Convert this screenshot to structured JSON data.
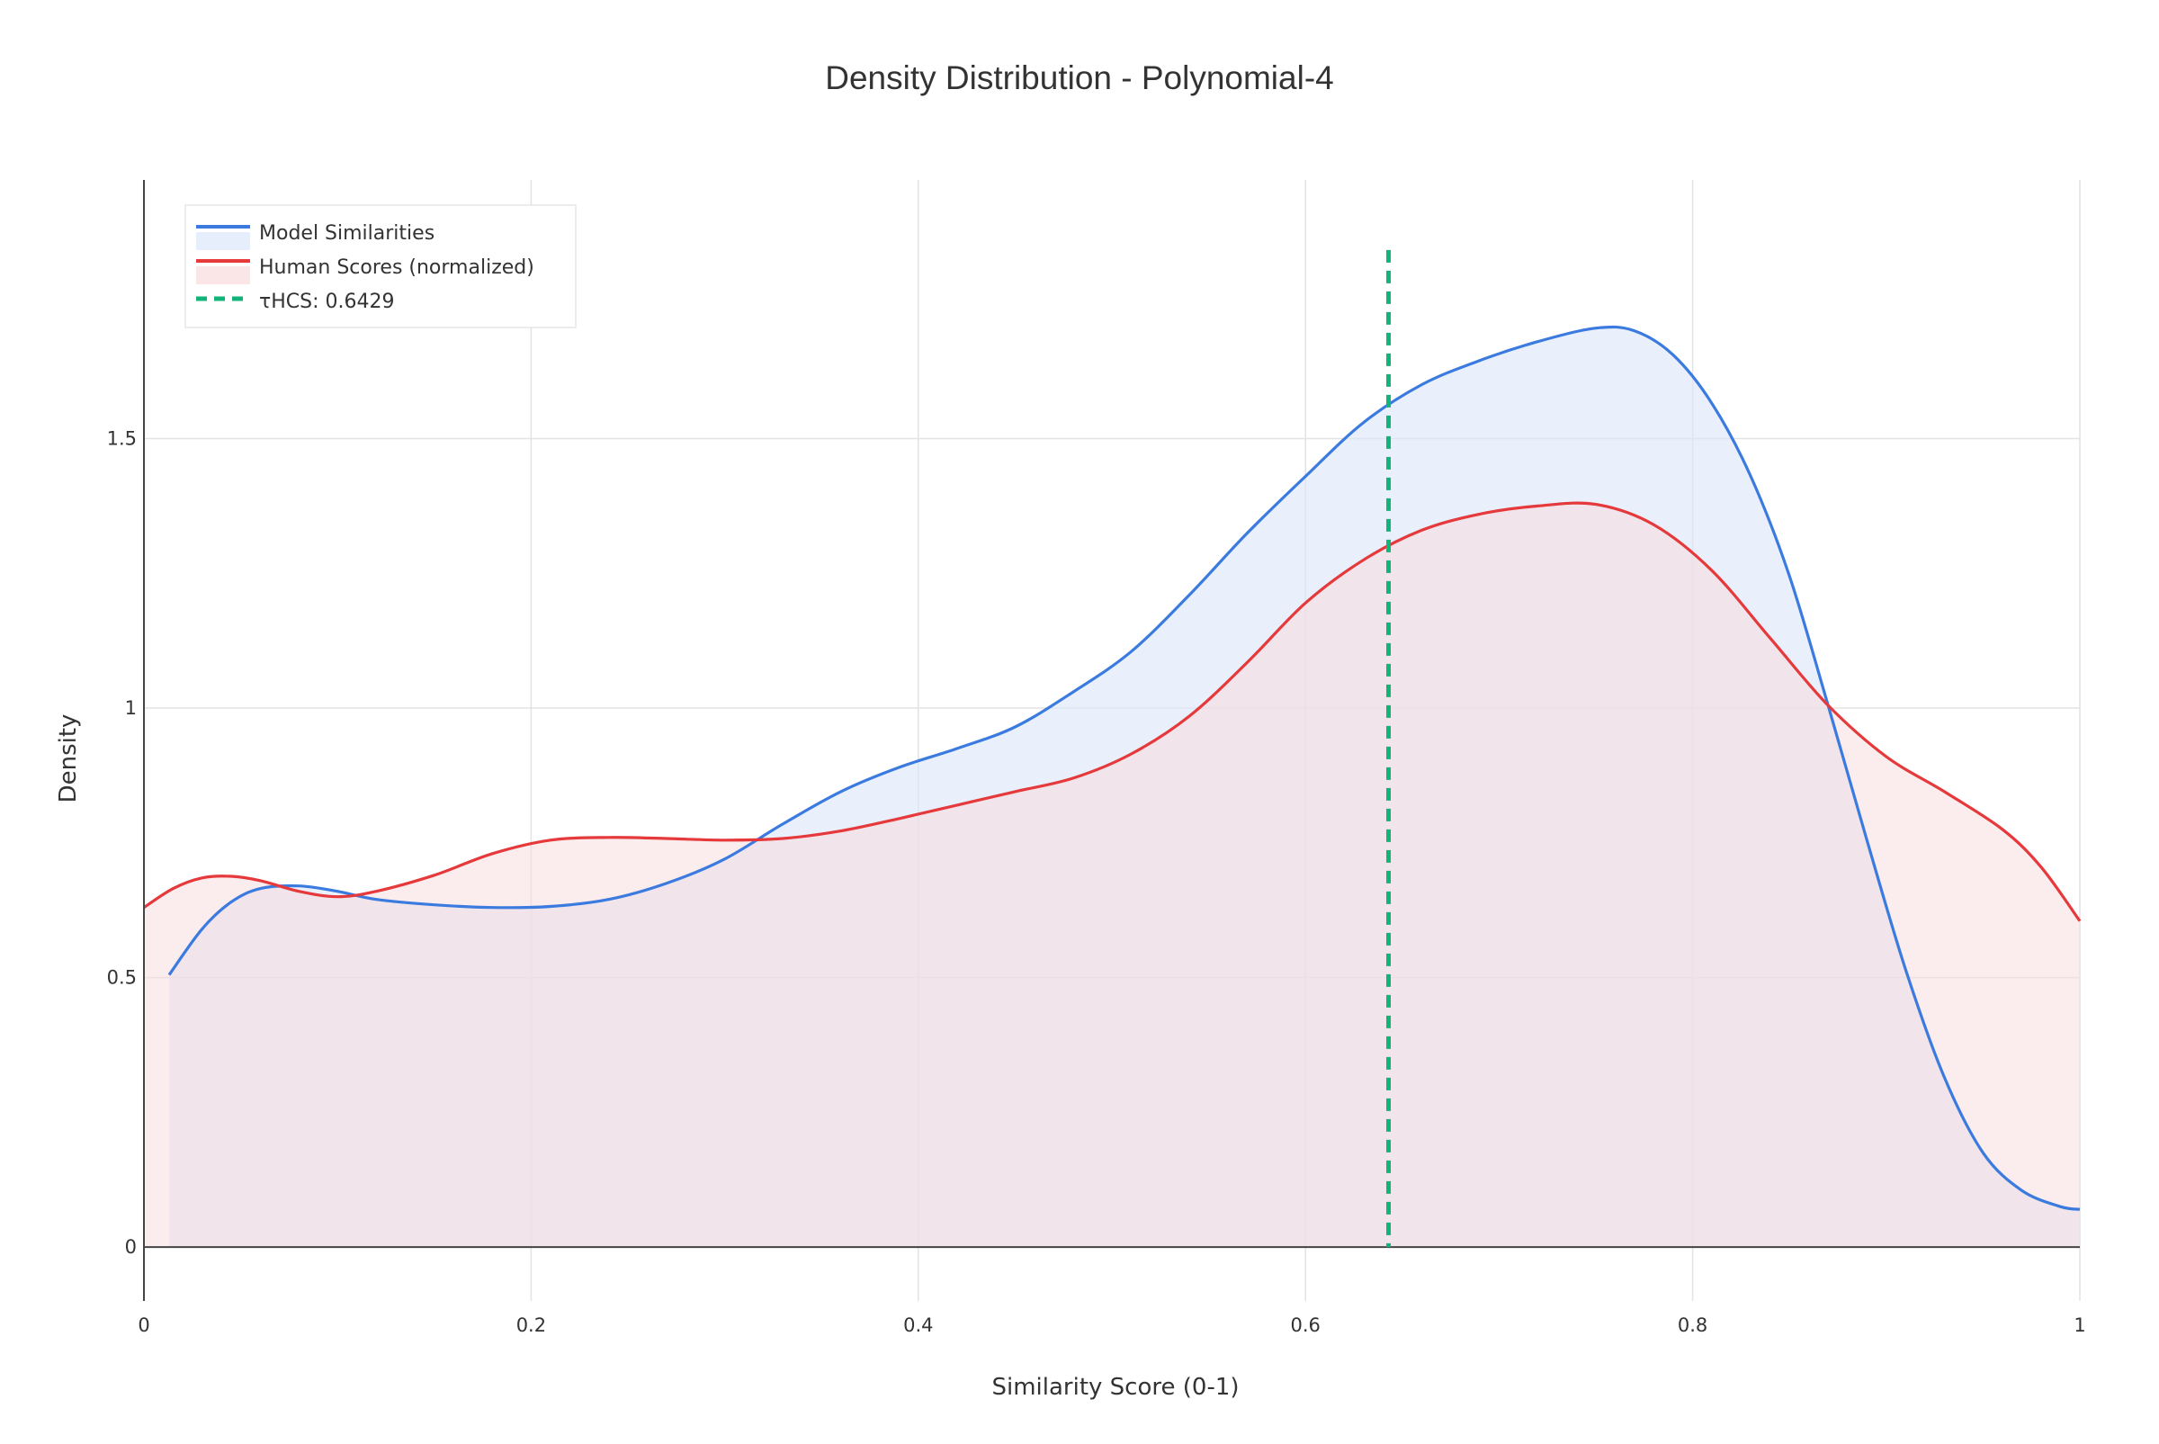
{
  "chart_data": {
    "type": "area",
    "title": "Density Distribution - Polynomial-4",
    "xlabel": "Similarity Score (0-1)",
    "ylabel": "Density",
    "xlim": [
      0,
      1
    ],
    "ylim": [
      -0.1,
      1.98
    ],
    "x_ticks": [
      0,
      0.2,
      0.4,
      0.6,
      0.8,
      1
    ],
    "x_tick_labels": [
      "0",
      "0.2",
      "0.4",
      "0.6",
      "0.8",
      "1"
    ],
    "y_ticks": [
      0,
      0.5,
      1,
      1.5
    ],
    "y_tick_labels": [
      "0",
      "0.5",
      "1",
      "1.5"
    ],
    "grid": true,
    "legend_position": "top-left",
    "series": [
      {
        "name": "Model Similarities",
        "color": "#3b7be0",
        "fill": "#dbe6f8",
        "x": [
          0.013,
          0.03,
          0.045,
          0.06,
          0.08,
          0.1,
          0.12,
          0.15,
          0.18,
          0.21,
          0.24,
          0.27,
          0.3,
          0.33,
          0.36,
          0.39,
          0.42,
          0.45,
          0.48,
          0.51,
          0.54,
          0.57,
          0.6,
          0.63,
          0.66,
          0.69,
          0.72,
          0.75,
          0.77,
          0.79,
          0.81,
          0.83,
          0.85,
          0.87,
          0.89,
          0.91,
          0.93,
          0.95,
          0.97,
          0.99,
          1.0
        ],
        "y": [
          0.505,
          0.59,
          0.64,
          0.665,
          0.67,
          0.66,
          0.645,
          0.635,
          0.63,
          0.632,
          0.645,
          0.675,
          0.72,
          0.785,
          0.845,
          0.89,
          0.925,
          0.965,
          1.03,
          1.105,
          1.21,
          1.325,
          1.43,
          1.53,
          1.6,
          1.645,
          1.68,
          1.705,
          1.7,
          1.655,
          1.565,
          1.43,
          1.245,
          1.005,
          0.755,
          0.515,
          0.315,
          0.175,
          0.105,
          0.075,
          0.07
        ]
      },
      {
        "name": "Human Scores (normalized)",
        "color": "#e5393b",
        "fill": "#f7dcde",
        "x": [
          0.0,
          0.015,
          0.03,
          0.045,
          0.06,
          0.08,
          0.1,
          0.12,
          0.15,
          0.18,
          0.21,
          0.24,
          0.27,
          0.3,
          0.33,
          0.36,
          0.39,
          0.42,
          0.45,
          0.48,
          0.51,
          0.54,
          0.57,
          0.6,
          0.63,
          0.66,
          0.69,
          0.72,
          0.75,
          0.78,
          0.81,
          0.84,
          0.87,
          0.9,
          0.93,
          0.96,
          0.98,
          1.0
        ],
        "y": [
          0.63,
          0.665,
          0.685,
          0.688,
          0.68,
          0.66,
          0.65,
          0.66,
          0.69,
          0.73,
          0.755,
          0.76,
          0.758,
          0.755,
          0.758,
          0.772,
          0.795,
          0.82,
          0.845,
          0.87,
          0.915,
          0.985,
          1.085,
          1.195,
          1.275,
          1.33,
          1.36,
          1.375,
          1.378,
          1.34,
          1.255,
          1.13,
          1.005,
          0.91,
          0.845,
          0.775,
          0.705,
          0.605
        ]
      }
    ],
    "threshold": {
      "name": "τHCS: 0.6429",
      "x": 0.6429,
      "color": "#12b47a"
    }
  }
}
